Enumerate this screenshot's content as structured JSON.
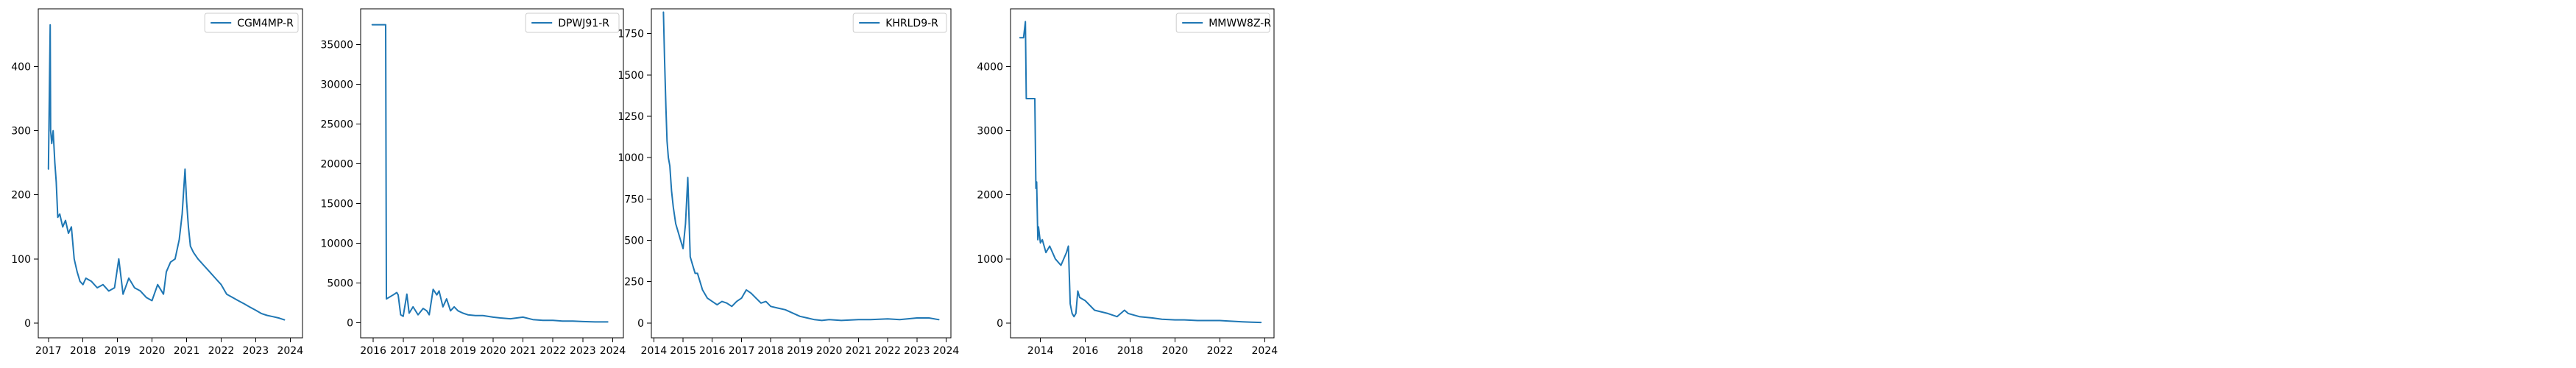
{
  "series_color": "#1f77b4",
  "chart_data": [
    {
      "type": "line",
      "title": "",
      "xlabel": "",
      "ylabel": "",
      "xlim": [
        "2016-09-16",
        "2024-05-10"
      ],
      "ylim": [
        -23,
        490
      ],
      "xticks": [
        "2017",
        "2018",
        "2019",
        "2020",
        "2021",
        "2022",
        "2023",
        "2024"
      ],
      "yticks": [
        0,
        100,
        200,
        300,
        400
      ],
      "legend": "top-right",
      "series": [
        {
          "name": "CGM4MP-R",
          "x": [
            "2017-01-01",
            "2017-01-20",
            "2017-01-25",
            "2017-02-05",
            "2017-02-20",
            "2017-03-10",
            "2017-03-25",
            "2017-04-10",
            "2017-05-01",
            "2017-06-01",
            "2017-07-01",
            "2017-08-01",
            "2017-09-01",
            "2017-10-01",
            "2017-11-01",
            "2017-12-01",
            "2018-01-01",
            "2018-02-01",
            "2018-04-01",
            "2018-06-01",
            "2018-08-01",
            "2018-10-01",
            "2018-12-01",
            "2019-01-15",
            "2019-03-01",
            "2019-05-01",
            "2019-07-01",
            "2019-09-01",
            "2019-11-01",
            "2020-01-01",
            "2020-03-01",
            "2020-05-01",
            "2020-06-01",
            "2020-07-15",
            "2020-09-01",
            "2020-10-15",
            "2020-11-15",
            "2020-12-15",
            "2021-01-01",
            "2021-01-20",
            "2021-02-10",
            "2021-03-15",
            "2021-05-01",
            "2021-07-01",
            "2021-09-01",
            "2021-11-01",
            "2022-01-01",
            "2022-03-01",
            "2022-05-01",
            "2022-07-01",
            "2022-09-01",
            "2022-11-01",
            "2023-01-01",
            "2023-03-01",
            "2023-05-01",
            "2023-07-01",
            "2023-09-01",
            "2023-11-01"
          ],
          "y": [
            240,
            465,
            300,
            280,
            300,
            250,
            220,
            165,
            170,
            150,
            160,
            140,
            150,
            100,
            80,
            65,
            60,
            70,
            65,
            55,
            60,
            50,
            55,
            100,
            45,
            70,
            55,
            50,
            40,
            35,
            60,
            45,
            80,
            95,
            100,
            130,
            170,
            240,
            190,
            150,
            120,
            110,
            100,
            90,
            80,
            70,
            60,
            45,
            40,
            35,
            30,
            25,
            20,
            15,
            12,
            10,
            8,
            5
          ]
        }
      ]
    },
    {
      "type": "line",
      "title": "",
      "xlabel": "",
      "ylabel": "",
      "xlim": [
        "2015-08-01",
        "2024-05-10"
      ],
      "ylim": [
        -1900,
        39500
      ],
      "xticks": [
        "2016",
        "2017",
        "2018",
        "2019",
        "2020",
        "2021",
        "2022",
        "2023",
        "2024"
      ],
      "yticks": [
        0,
        5000,
        10000,
        15000,
        20000,
        25000,
        30000,
        35000
      ],
      "legend": "top-right",
      "series": [
        {
          "name": "DPWJ91-R",
          "x": [
            "2015-12-20",
            "2016-06-01",
            "2016-06-10",
            "2016-09-01",
            "2016-10-15",
            "2016-11-01",
            "2016-12-01",
            "2017-01-01",
            "2017-02-15",
            "2017-03-15",
            "2017-05-01",
            "2017-07-01",
            "2017-09-01",
            "2017-10-15",
            "2017-11-15",
            "2018-01-01",
            "2018-02-15",
            "2018-03-15",
            "2018-05-01",
            "2018-06-15",
            "2018-08-01",
            "2018-09-15",
            "2018-11-01",
            "2019-01-01",
            "2019-03-01",
            "2019-06-01",
            "2019-09-01",
            "2020-01-01",
            "2020-04-01",
            "2020-08-01",
            "2021-01-01",
            "2021-05-01",
            "2021-09-01",
            "2022-01-01",
            "2022-05-01",
            "2022-09-01",
            "2023-01-01",
            "2023-06-01",
            "2023-11-01"
          ],
          "y": [
            37500,
            37500,
            3000,
            3500,
            3800,
            3500,
            1000,
            800,
            3600,
            1200,
            2000,
            1000,
            1800,
            1500,
            1000,
            4200,
            3500,
            4000,
            2000,
            3000,
            1500,
            2000,
            1500,
            1200,
            1000,
            900,
            900,
            700,
            600,
            500,
            700,
            400,
            300,
            300,
            200,
            200,
            150,
            100,
            100
          ]
        }
      ]
    },
    {
      "type": "line",
      "title": "",
      "xlabel": "",
      "ylabel": "",
      "xlim": [
        "2013-12-01",
        "2024-03-01"
      ],
      "ylim": [
        -90,
        1900
      ],
      "xticks": [
        "2014",
        "2015",
        "2016",
        "2017",
        "2018",
        "2019",
        "2020",
        "2021",
        "2022",
        "2023",
        "2024"
      ],
      "yticks": [
        0,
        250,
        500,
        750,
        1000,
        1250,
        1500,
        1750
      ],
      "legend": "top-right",
      "series": [
        {
          "name": "KHRLD9-R",
          "x": [
            "2014-05-01",
            "2014-05-15",
            "2014-06-01",
            "2014-06-15",
            "2014-07-01",
            "2014-07-20",
            "2014-08-10",
            "2014-09-01",
            "2014-10-01",
            "2014-11-01",
            "2014-12-01",
            "2015-01-01",
            "2015-02-01",
            "2015-03-01",
            "2015-04-01",
            "2015-05-01",
            "2015-06-01",
            "2015-07-01",
            "2015-09-01",
            "2015-11-01",
            "2016-01-01",
            "2016-03-01",
            "2016-05-01",
            "2016-07-01",
            "2016-09-01",
            "2016-11-01",
            "2017-01-01",
            "2017-03-01",
            "2017-05-01",
            "2017-07-01",
            "2017-09-01",
            "2017-11-01",
            "2018-01-01",
            "2018-04-01",
            "2018-07-01",
            "2018-10-01",
            "2019-01-01",
            "2019-04-01",
            "2019-07-01",
            "2019-10-01",
            "2020-01-01",
            "2020-06-01",
            "2021-01-01",
            "2021-06-01",
            "2022-01-01",
            "2022-06-01",
            "2023-01-01",
            "2023-06-01",
            "2023-10-01"
          ],
          "y": [
            1880,
            1600,
            1300,
            1100,
            1000,
            950,
            800,
            700,
            600,
            550,
            500,
            450,
            600,
            880,
            400,
            350,
            300,
            300,
            200,
            150,
            130,
            110,
            130,
            120,
            100,
            130,
            150,
            200,
            180,
            150,
            120,
            130,
            100,
            90,
            80,
            60,
            40,
            30,
            20,
            15,
            20,
            15,
            20,
            20,
            25,
            20,
            30,
            30,
            20
          ]
        }
      ]
    },
    {
      "type": "line",
      "title": "",
      "xlabel": "",
      "ylabel": "",
      "xlim": [
        "2012-09-01",
        "2024-06-01"
      ],
      "ylim": [
        -230,
        4900
      ],
      "xticks": [
        "2014",
        "2016",
        "2018",
        "2020",
        "2022",
        "2024"
      ],
      "yticks": [
        0,
        1000,
        2000,
        3000,
        4000
      ],
      "legend": "top-right",
      "series": [
        {
          "name": "MMWW8Z-R",
          "x": [
            "2013-02-01",
            "2013-04-01",
            "2013-05-01",
            "2013-05-15",
            "2013-08-01",
            "2013-10-01",
            "2013-10-20",
            "2013-11-01",
            "2013-11-20",
            "2013-12-01",
            "2014-01-01",
            "2014-02-01",
            "2014-04-01",
            "2014-06-01",
            "2014-09-01",
            "2014-12-01",
            "2015-03-01",
            "2015-04-01",
            "2015-05-01",
            "2015-06-01",
            "2015-07-01",
            "2015-08-01",
            "2015-09-01",
            "2015-10-01",
            "2016-01-01",
            "2016-06-01",
            "2017-01-01",
            "2017-06-01",
            "2017-10-01",
            "2017-12-01",
            "2018-06-01",
            "2019-01-01",
            "2019-06-01",
            "2020-01-01",
            "2020-06-01",
            "2021-01-01",
            "2021-06-01",
            "2022-01-01",
            "2022-06-01",
            "2023-01-01",
            "2023-06-01",
            "2023-11-01"
          ],
          "y": [
            4450,
            4450,
            4700,
            3500,
            3500,
            3500,
            2100,
            2200,
            1300,
            1500,
            1250,
            1300,
            1100,
            1200,
            1000,
            900,
            1100,
            1200,
            300,
            150,
            100,
            150,
            500,
            400,
            350,
            200,
            150,
            100,
            200,
            150,
            100,
            80,
            60,
            50,
            50,
            40,
            40,
            40,
            30,
            20,
            15,
            10
          ]
        }
      ]
    }
  ]
}
